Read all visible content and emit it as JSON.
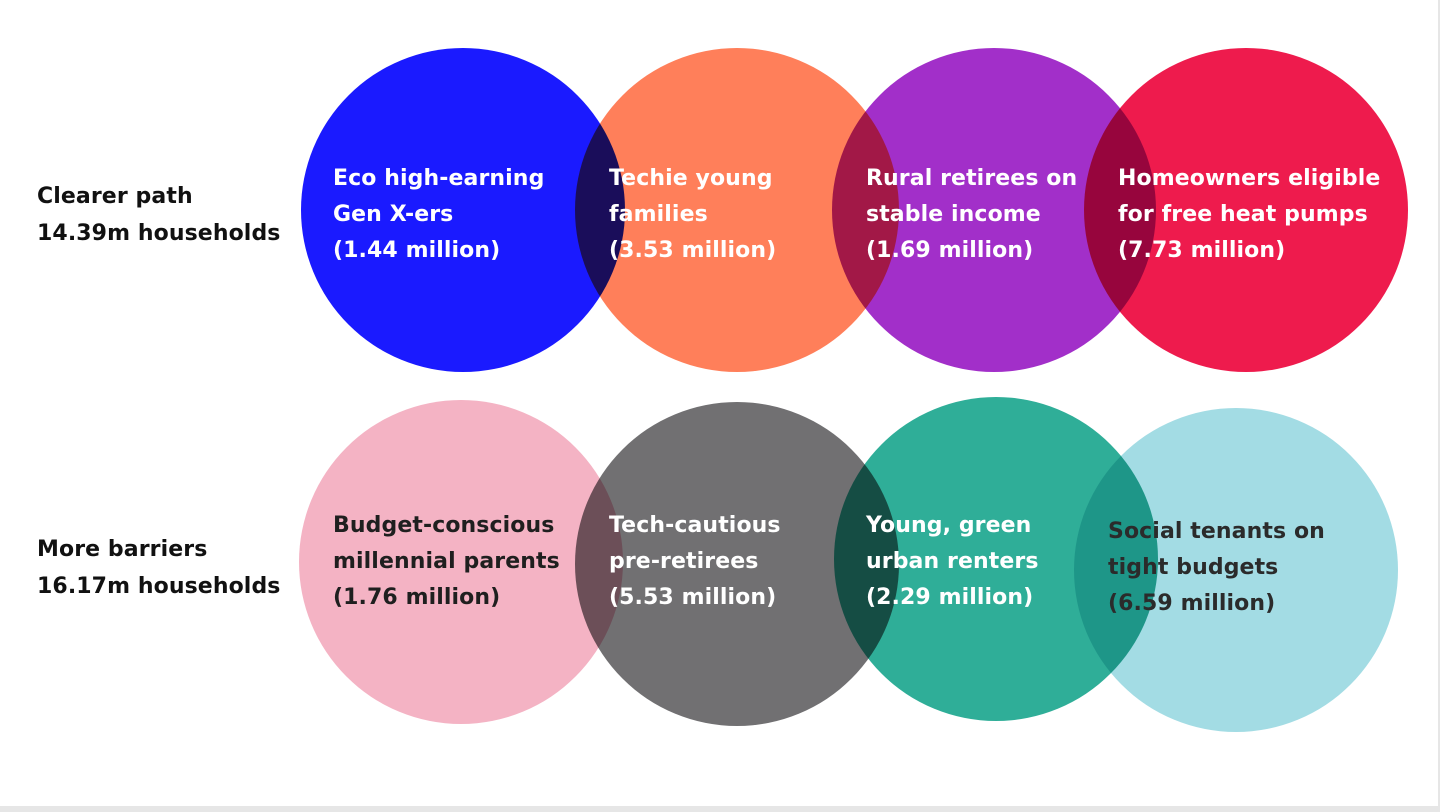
{
  "rows": [
    {
      "label_line1": "Clearer path",
      "label_line2": "14.39m households",
      "segments": [
        {
          "line1": "Eco high-earning",
          "line2": "Gen X-ers",
          "value": "(1.44 million)",
          "color": "#1a1aff",
          "text_color": "#ffffff"
        },
        {
          "line1": "Techie young",
          "line2": "families",
          "value": "(3.53 million)",
          "color": "#ff7f5a",
          "text_color": "#ffffff"
        },
        {
          "line1": "Rural retirees on",
          "line2": "stable income",
          "value": "(1.69 million)",
          "color": "#a22fc9",
          "text_color": "#ffffff"
        },
        {
          "line1": "Homeowners eligible",
          "line2": "for free heat pumps",
          "value": "(7.73 million)",
          "color": "#ee1b4d",
          "text_color": "#ffffff"
        }
      ]
    },
    {
      "label_line1": "More barriers",
      "label_line2": "16.17m households",
      "segments": [
        {
          "line1": "Budget-conscious",
          "line2": "millennial parents",
          "value": "(1.76 million)",
          "color": "#f4b3c4",
          "text_color": "#1f1f1f"
        },
        {
          "line1": "Tech-cautious",
          "line2": "pre-retirees",
          "value": "(5.53 million)",
          "color": "#717072",
          "text_color": "#ffffff"
        },
        {
          "line1": "Young, green",
          "line2": "urban renters",
          "value": "(2.29 million)",
          "color": "#2fae98",
          "text_color": "#ffffff"
        },
        {
          "line1": "Social tenants on",
          "line2": "tight budgets",
          "value": "(6.59 million)",
          "color": "#a3dce4",
          "text_color": "#2b2b2b"
        }
      ]
    }
  ]
}
